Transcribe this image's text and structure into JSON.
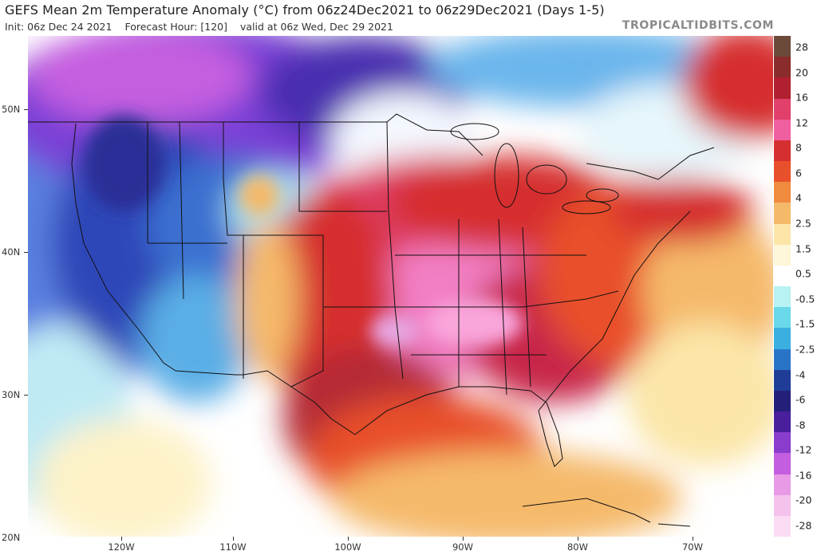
{
  "header": {
    "title": "GEFS Mean 2m Temperature Anomaly (°C) from 06z24Dec2021 to 06z29Dec2021 (Days 1-5)",
    "init": "Init: 06z Dec 24 2021",
    "forecast_hour": "Forecast Hour: [120]",
    "valid": "valid at 06z Wed, Dec 29 2021",
    "brand": "TROPICALTIDBITS.COM"
  },
  "axes": {
    "lat_labels": [
      "50N",
      "40N",
      "30N",
      "20N"
    ],
    "lon_labels": [
      "120W",
      "110W",
      "100W",
      "90W",
      "80W",
      "70W"
    ]
  },
  "colorbar": {
    "labels": [
      "28",
      "20",
      "16",
      "12",
      "8",
      "6",
      "4",
      "2.5",
      "1.5",
      "0.5",
      "-0.5",
      "-1.5",
      "-2.5",
      "-4",
      "-6",
      "-8",
      "-12",
      "-16",
      "-20",
      "-28"
    ],
    "colors": [
      "#6b4a3a",
      "#8a2c2c",
      "#b02030",
      "#e0406a",
      "#f060a0",
      "#d62f2f",
      "#e8502b",
      "#f08a3e",
      "#f5b96a",
      "#fbe6a8",
      "#fdf6d8",
      "#ffffff",
      "#b8f2f2",
      "#69d8e8",
      "#3bb0e0",
      "#2a74c8",
      "#1f3d96",
      "#24207a",
      "#4a1f9c",
      "#8a3ccc",
      "#c45ee0",
      "#e89ae6",
      "#f4c2ec",
      "#fbdcf4"
    ]
  },
  "map": {
    "region": "Continental United States",
    "colors": {
      "ocean_neutral": "#ffffff",
      "cold_west": "#2f46b8",
      "very_cold_nw": "#7a3fd6",
      "pacific_cool": "#7fd3e8",
      "warm_plains": "#e0406a",
      "hot_core": "#f27fc4",
      "warm_gulf": "#d62f2f",
      "mild_atlantic": "#f5b96a"
    }
  }
}
